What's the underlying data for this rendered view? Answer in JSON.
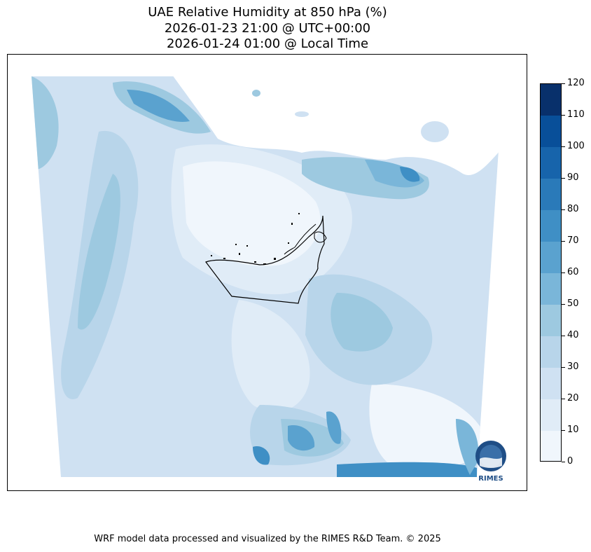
{
  "title": {
    "line1": "UAE Relative Humidity at 850 hPa (%)",
    "line2": "2026-01-23 21:00 @ UTC+00:00",
    "line3": "2026-01-24 01:00 @ Local Time"
  },
  "colorbar": {
    "ticks": [
      "0",
      "10",
      "20",
      "30",
      "40",
      "50",
      "60",
      "70",
      "80",
      "90",
      "100",
      "110",
      "120"
    ],
    "colors": [
      "#f0f6fc",
      "#e0ecf7",
      "#cfe1f2",
      "#b8d5ea",
      "#9dc9e0",
      "#7ab6d9",
      "#5aa2cf",
      "#3f8fc5",
      "#2a7ab9",
      "#1764ab",
      "#084f99",
      "#08306b"
    ]
  },
  "logo": {
    "text": "RIMES"
  },
  "footer": {
    "credit": "WRF model data processed and visualized by the RIMES R&D Team. © 2025"
  }
}
